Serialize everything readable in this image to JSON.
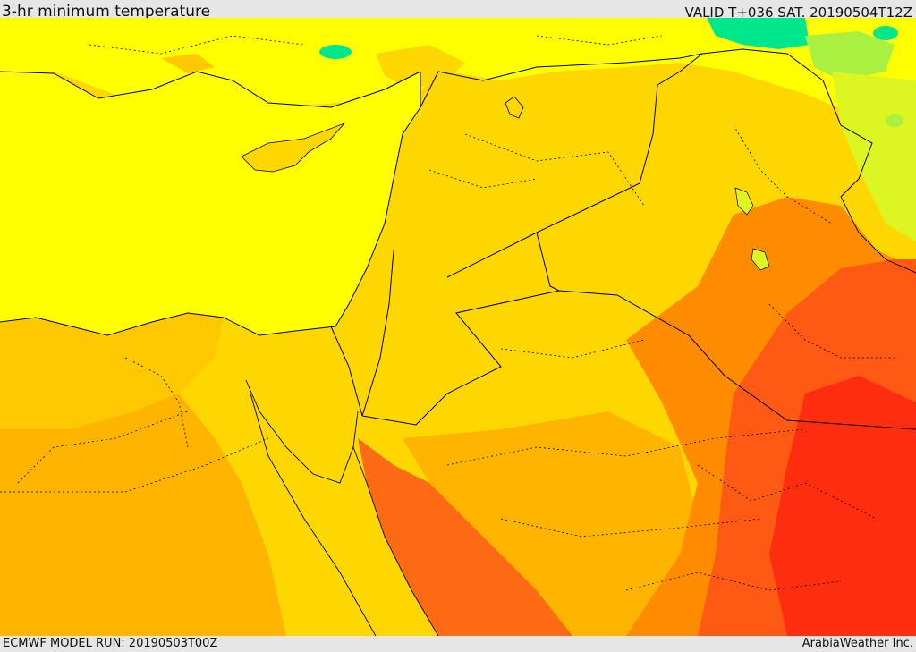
{
  "header": {
    "title": "3-hr minimum temperature",
    "valid_time": "VALID T+036 SAT. 20190504T12Z"
  },
  "footer": {
    "model_run": "ECMWF MODEL RUN: 20190503T00Z",
    "credit": "ArabiaWeather Inc."
  },
  "map": {
    "field": "3-hr minimum temperature",
    "colors": {
      "sea": "#ffff00",
      "cool_green": "#00e68c",
      "light_green": "#aaf040",
      "yellow_green": "#ddf520",
      "gold": "#ffd700",
      "amber": "#ffb400",
      "orange": "#ff8c00",
      "red_orange": "#ff5a14",
      "red": "#ff2d0f",
      "borders": "#000000"
    }
  }
}
